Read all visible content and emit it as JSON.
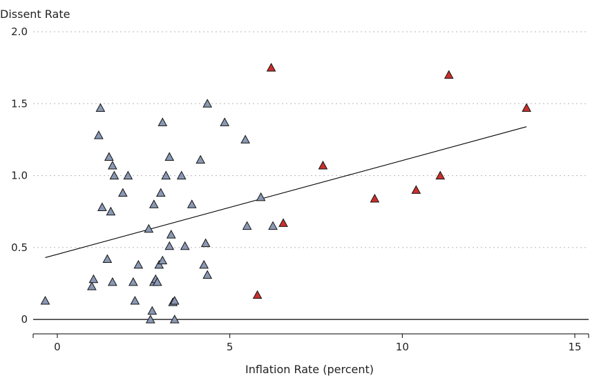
{
  "chart_data": {
    "type": "scatter",
    "title": "",
    "ylabel": "Dissent Rate",
    "xlabel": "Inflation Rate (percent)",
    "xlim": [
      -0.7,
      15.4
    ],
    "ylim": [
      -0.1,
      2.0
    ],
    "x_ticks": [
      0,
      5,
      10,
      15
    ],
    "x_tick_labels": [
      "0",
      "5",
      "10",
      "15"
    ],
    "y_ticks": [
      0,
      0.5,
      1.0,
      1.5,
      2.0
    ],
    "y_tick_labels": [
      "0",
      "0.5",
      "1.0",
      "1.5",
      "2.0"
    ],
    "grid": "horizontal dotted",
    "colors": {
      "blue": "#8a98b4",
      "red": "#c9302c"
    },
    "series": [
      {
        "color_key": "blue",
        "marker": "triangle",
        "points": [
          [
            -0.35,
            0.13
          ],
          [
            1.0,
            0.23
          ],
          [
            1.05,
            0.28
          ],
          [
            1.2,
            1.28
          ],
          [
            1.25,
            1.47
          ],
          [
            1.3,
            0.78
          ],
          [
            1.45,
            0.42
          ],
          [
            1.5,
            1.13
          ],
          [
            1.55,
            0.75
          ],
          [
            1.6,
            1.07
          ],
          [
            1.6,
            0.26
          ],
          [
            1.65,
            1.0
          ],
          [
            1.9,
            0.88
          ],
          [
            2.05,
            1.0
          ],
          [
            2.2,
            0.26
          ],
          [
            2.25,
            0.13
          ],
          [
            2.35,
            0.38
          ],
          [
            2.65,
            0.63
          ],
          [
            2.7,
            0.0
          ],
          [
            2.75,
            0.06
          ],
          [
            2.8,
            0.8
          ],
          [
            2.8,
            0.26
          ],
          [
            2.85,
            0.28
          ],
          [
            2.9,
            0.26
          ],
          [
            2.95,
            0.38
          ],
          [
            3.0,
            0.88
          ],
          [
            3.05,
            0.41
          ],
          [
            3.05,
            1.37
          ],
          [
            3.15,
            1.0
          ],
          [
            3.25,
            1.13
          ],
          [
            3.25,
            0.51
          ],
          [
            3.3,
            0.59
          ],
          [
            3.35,
            0.12
          ],
          [
            3.4,
            0.0
          ],
          [
            3.4,
            0.13
          ],
          [
            3.6,
            1.0
          ],
          [
            3.7,
            0.51
          ],
          [
            3.9,
            0.8
          ],
          [
            4.15,
            1.11
          ],
          [
            4.25,
            0.38
          ],
          [
            4.3,
            0.53
          ],
          [
            4.35,
            0.31
          ],
          [
            4.35,
            1.5
          ],
          [
            4.85,
            1.37
          ],
          [
            5.45,
            1.25
          ],
          [
            5.5,
            0.65
          ],
          [
            5.9,
            0.85
          ],
          [
            6.25,
            0.65
          ]
        ]
      },
      {
        "color_key": "red",
        "marker": "triangle",
        "points": [
          [
            5.8,
            0.17
          ],
          [
            6.2,
            1.75
          ],
          [
            6.55,
            0.67
          ],
          [
            7.7,
            1.07
          ],
          [
            9.2,
            0.84
          ],
          [
            10.4,
            0.9
          ],
          [
            11.1,
            1.0
          ],
          [
            11.35,
            1.7
          ],
          [
            13.6,
            1.47
          ]
        ]
      }
    ],
    "fit_line": {
      "x": [
        -0.35,
        13.6
      ],
      "y": [
        0.43,
        1.34
      ]
    }
  }
}
